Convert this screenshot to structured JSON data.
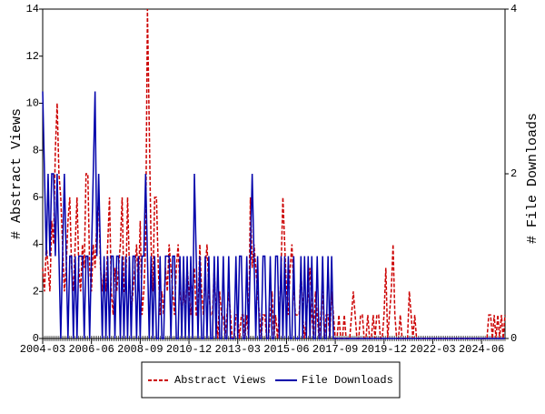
{
  "chart_data": {
    "type": "line",
    "y_label": "# Abstract Views",
    "y2_label": "# File Downloads",
    "categories": [
      "2004-03",
      null,
      null,
      null,
      null,
      null,
      null,
      null,
      null,
      null,
      null,
      null,
      null,
      null,
      null,
      null,
      null,
      null,
      null,
      null,
      null,
      null,
      null,
      null,
      null,
      null,
      null,
      "2006-06",
      null,
      null,
      null,
      null,
      null,
      null,
      null,
      null,
      null,
      null,
      null,
      null,
      null,
      null,
      null,
      null,
      null,
      null,
      null,
      null,
      null,
      null,
      null,
      null,
      null,
      null,
      "2008-09",
      null,
      null,
      null,
      null,
      null,
      null,
      null,
      null,
      null,
      null,
      null,
      null,
      null,
      null,
      null,
      null,
      null,
      null,
      null,
      null,
      null,
      null,
      null,
      null,
      null,
      null,
      "2010-12",
      null,
      null,
      null,
      null,
      null,
      null,
      null,
      null,
      null,
      null,
      null,
      null,
      null,
      null,
      null,
      null,
      null,
      null,
      null,
      null,
      null,
      null,
      null,
      null,
      null,
      null,
      "2013-03",
      null,
      null,
      null,
      null,
      null,
      null,
      null,
      null,
      null,
      null,
      null,
      null,
      null,
      null,
      null,
      null,
      null,
      null,
      null,
      null,
      null,
      null,
      null,
      null,
      null,
      null,
      "2015-06",
      null,
      null,
      null,
      null,
      null,
      null,
      null,
      null,
      null,
      null,
      null,
      null,
      null,
      null,
      null,
      null,
      null,
      null,
      null,
      null,
      null,
      null,
      null,
      null,
      null,
      null,
      "2017-09",
      null,
      null,
      null,
      null,
      null,
      null,
      null,
      null,
      null,
      null,
      null,
      null,
      null,
      null,
      null,
      null,
      null,
      null,
      null,
      null,
      null,
      null,
      null,
      null,
      null,
      null,
      "2019-12",
      null,
      null,
      null,
      null,
      null,
      null,
      null,
      null,
      null,
      null,
      null,
      null,
      null,
      null,
      null,
      null,
      null,
      null,
      null,
      null,
      null,
      null,
      null,
      null,
      null,
      null,
      "2022-03",
      null,
      null,
      null,
      null,
      null,
      null,
      null,
      null,
      null,
      null,
      null,
      null,
      null,
      null,
      null,
      null,
      null,
      null,
      null,
      null,
      null,
      null,
      null,
      null,
      null,
      null,
      "2024-06",
      null,
      null,
      null,
      null,
      null,
      null,
      null,
      null,
      null,
      null,
      null,
      null,
      null
    ],
    "series": [
      {
        "name": "Abstract Views",
        "color": "#cc0000",
        "dash": true,
        "values": [
          3,
          2,
          4,
          3,
          2,
          5,
          4,
          8,
          10,
          7,
          6,
          4,
          2,
          3,
          5,
          6,
          3,
          2,
          4,
          6,
          3,
          2,
          4,
          3,
          7,
          7,
          3,
          2,
          4,
          3,
          5,
          6,
          3,
          2,
          3,
          2,
          4,
          6,
          2,
          1,
          3,
          2,
          3,
          4,
          6,
          2,
          2,
          6,
          3,
          1,
          2,
          3,
          4,
          2,
          5,
          1,
          2,
          4,
          14,
          9,
          4,
          2,
          6,
          6,
          3,
          1,
          2,
          1,
          3,
          2,
          4,
          3,
          2,
          1,
          3,
          4,
          2,
          1,
          2,
          1,
          3,
          2,
          1,
          2,
          3,
          1,
          1,
          4,
          2,
          1,
          3,
          4,
          2,
          1,
          1,
          3,
          1,
          0,
          2,
          1,
          1,
          0,
          1,
          2,
          1,
          0,
          0,
          1,
          1,
          0,
          1,
          1,
          0,
          1,
          0,
          6,
          3,
          4,
          3,
          2,
          1,
          0,
          1,
          1,
          0,
          0,
          1,
          2,
          0,
          1,
          0,
          1,
          3,
          6,
          4,
          2,
          1,
          3,
          4,
          2,
          1,
          1,
          1,
          3,
          1,
          0,
          1,
          2,
          3,
          1,
          0,
          2,
          1,
          0,
          1,
          2,
          0,
          1,
          1,
          0,
          2,
          1,
          0,
          0,
          1,
          0,
          0,
          1,
          0,
          0,
          0,
          1,
          2,
          1,
          0,
          0,
          1,
          1,
          0,
          0,
          1,
          0,
          0,
          1,
          0,
          1,
          1,
          0,
          0,
          1,
          3,
          0,
          1,
          2,
          4,
          1,
          0,
          0,
          1,
          0,
          0,
          0,
          0,
          2,
          1,
          0,
          1,
          0,
          0,
          0,
          0,
          0,
          0,
          0,
          0,
          0,
          0,
          0,
          0,
          0,
          0,
          0,
          0,
          0,
          0,
          0,
          0,
          0,
          0,
          0,
          0,
          0,
          0,
          0,
          0,
          0,
          0,
          0,
          0,
          0,
          0,
          0,
          0,
          0,
          0,
          0,
          0,
          1,
          1,
          0,
          1,
          0,
          1,
          0,
          1,
          0,
          1
        ]
      },
      {
        "name": "File Downloads",
        "color": "#0000aa",
        "axis": "y2",
        "values": [
          3,
          2,
          1,
          2,
          1,
          2,
          2,
          1,
          2,
          1,
          0,
          1,
          2,
          1,
          0,
          1,
          1,
          0,
          1,
          0,
          1,
          1,
          1,
          0,
          1,
          1,
          0,
          1,
          2,
          3,
          1,
          2,
          1,
          0,
          1,
          0,
          1,
          0,
          1,
          1,
          0,
          1,
          1,
          0,
          1,
          0,
          1,
          0,
          1,
          0,
          1,
          1,
          0,
          1,
          0,
          1,
          1,
          2,
          1,
          0,
          1,
          0,
          1,
          0,
          0,
          1,
          0,
          0,
          1,
          1,
          1,
          0,
          1,
          1,
          0,
          0,
          1,
          0,
          1,
          0,
          1,
          0,
          1,
          0,
          2,
          1,
          0,
          1,
          0,
          0,
          1,
          0,
          1,
          0,
          0,
          1,
          0,
          1,
          0,
          0,
          1,
          0,
          0,
          1,
          0,
          0,
          0,
          1,
          0,
          1,
          1,
          0,
          0,
          1,
          0,
          1,
          2,
          1,
          0,
          1,
          0,
          0,
          1,
          1,
          0,
          0,
          1,
          0,
          0,
          1,
          1,
          0,
          1,
          0,
          1,
          0,
          1,
          0,
          0,
          1,
          0,
          0,
          0,
          1,
          0,
          1,
          0,
          1,
          0,
          1,
          0,
          0,
          1,
          0,
          0,
          1,
          0,
          0,
          1,
          0,
          1,
          0,
          0,
          0,
          0,
          0,
          0,
          0,
          0,
          0,
          0,
          0,
          0,
          0,
          0,
          0,
          0,
          0,
          0,
          0,
          0,
          0,
          0,
          0,
          0,
          0,
          0,
          0,
          0,
          0,
          0,
          0,
          0,
          0,
          0,
          0,
          0,
          0,
          0,
          0,
          0,
          0,
          0,
          0,
          0,
          0,
          0,
          0,
          0,
          0,
          0,
          0,
          0,
          0,
          0,
          0,
          0,
          0,
          0,
          0,
          0,
          0,
          0,
          0,
          0,
          0,
          0,
          0,
          0,
          0,
          0,
          0,
          0,
          0,
          0,
          0,
          0,
          0,
          0,
          0,
          0,
          0,
          0,
          0,
          0,
          0,
          0,
          0,
          0,
          0,
          0,
          0,
          0,
          0,
          0,
          0,
          0
        ]
      }
    ],
    "ylim": [
      0,
      14
    ],
    "yticks": [
      0,
      2,
      4,
      6,
      8,
      10,
      12,
      14
    ],
    "y2lim": [
      0,
      4
    ],
    "y2ticks": [
      0,
      2,
      4
    ]
  }
}
